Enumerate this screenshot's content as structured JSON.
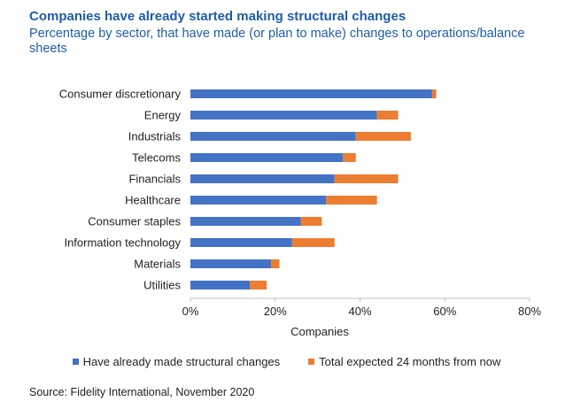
{
  "chart_data": {
    "type": "bar",
    "orientation": "horizontal",
    "stacked": true,
    "title": "Companies have already started making structural changes",
    "subtitle": "Percentage by sector, that have made (or plan to make) changes to operations/balance sheets",
    "xlabel": "Companies",
    "ylabel": "",
    "xlim": [
      0,
      80
    ],
    "x_ticks": [
      "0%",
      "20%",
      "40%",
      "60%",
      "80%"
    ],
    "categories": [
      "Consumer discretionary",
      "Energy",
      "Industrials",
      "Telecoms",
      "Financials",
      "Healthcare",
      "Consumer staples",
      "Information technology",
      "Materials",
      "Utilities"
    ],
    "series": [
      {
        "name": "Have already made structural changes",
        "color": "#4472c4",
        "values": [
          57,
          44,
          39,
          36,
          34,
          32,
          26,
          24,
          19,
          14
        ]
      },
      {
        "name": "Total expected 24 months from now",
        "color": "#ed7d31",
        "values": [
          1,
          5,
          13,
          3,
          15,
          12,
          5,
          10,
          2,
          4
        ]
      }
    ],
    "legend_position": "bottom",
    "grid": false,
    "source": "Source: Fidelity International, November 2020"
  }
}
